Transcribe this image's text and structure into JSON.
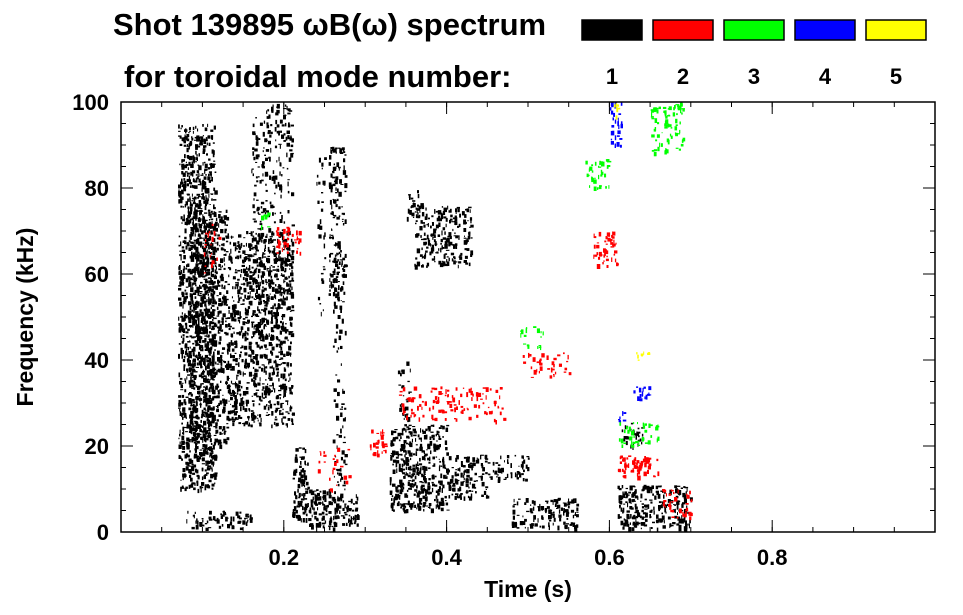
{
  "chart_data": {
    "type": "heatmap",
    "title_line1": "Shot 139895 ωB(ω) spectrum",
    "title_line2": "for toroidal mode number:",
    "xlabel": "Time (s)",
    "ylabel": "Frequency (kHz)",
    "xlim": [
      0.0,
      1.0
    ],
    "ylim": [
      0,
      100
    ],
    "x_ticks": [
      0.2,
      0.4,
      0.6,
      0.8
    ],
    "x_tick_labels": [
      "0.2",
      "0.4",
      "0.6",
      "0.8"
    ],
    "y_ticks": [
      0,
      20,
      40,
      60,
      80,
      100
    ],
    "y_tick_labels": [
      "0",
      "20",
      "40",
      "60",
      "80",
      "100"
    ],
    "legend_position": "top-right",
    "legend": [
      {
        "label": "1",
        "color": "#000000"
      },
      {
        "label": "2",
        "color": "#ff0000"
      },
      {
        "label": "3",
        "color": "#00ff00"
      },
      {
        "label": "4",
        "color": "#0000ff"
      },
      {
        "label": "5",
        "color": "#ffff00"
      }
    ],
    "regions": [
      {
        "mode": 1,
        "t": [
          0.07,
          0.115
        ],
        "f": [
          10,
          95
        ],
        "density": 0.75
      },
      {
        "mode": 1,
        "t": [
          0.085,
          0.13
        ],
        "f": [
          20,
          75
        ],
        "density": 0.65
      },
      {
        "mode": 1,
        "t": [
          0.13,
          0.21
        ],
        "f": [
          25,
          70
        ],
        "density": 0.6
      },
      {
        "mode": 1,
        "t": [
          0.16,
          0.21
        ],
        "f": [
          45,
          100
        ],
        "density": 0.3
      },
      {
        "mode": 1,
        "t": [
          0.08,
          0.16
        ],
        "f": [
          1,
          5
        ],
        "density": 0.55
      },
      {
        "mode": 1,
        "t": [
          0.21,
          0.23
        ],
        "f": [
          3,
          20
        ],
        "density": 0.7
      },
      {
        "mode": 1,
        "t": [
          0.23,
          0.265
        ],
        "f": [
          1,
          10
        ],
        "density": 0.75
      },
      {
        "mode": 1,
        "t": [
          0.265,
          0.29
        ],
        "f": [
          2,
          9
        ],
        "density": 0.75
      },
      {
        "mode": 1,
        "t": [
          0.255,
          0.275
        ],
        "f": [
          55,
          90
        ],
        "density": 0.5
      },
      {
        "mode": 1,
        "t": [
          0.26,
          0.275
        ],
        "f": [
          5,
          65
        ],
        "density": 0.25
      },
      {
        "mode": 1,
        "t": [
          0.24,
          0.25
        ],
        "f": [
          50,
          88
        ],
        "density": 0.2
      },
      {
        "mode": 1,
        "t": [
          0.33,
          0.4
        ],
        "f": [
          5,
          25
        ],
        "density": 0.7
      },
      {
        "mode": 1,
        "t": [
          0.4,
          0.45
        ],
        "f": [
          8,
          18
        ],
        "density": 0.6
      },
      {
        "mode": 1,
        "t": [
          0.45,
          0.5
        ],
        "f": [
          12,
          18
        ],
        "density": 0.45
      },
      {
        "mode": 1,
        "t": [
          0.34,
          0.355
        ],
        "f": [
          25,
          40
        ],
        "density": 0.35
      },
      {
        "mode": 1,
        "t": [
          0.36,
          0.43
        ],
        "f": [
          62,
          76
        ],
        "density": 0.55
      },
      {
        "mode": 1,
        "t": [
          0.35,
          0.37
        ],
        "f": [
          73,
          80
        ],
        "density": 0.4
      },
      {
        "mode": 1,
        "t": [
          0.48,
          0.56
        ],
        "f": [
          1,
          8
        ],
        "density": 0.55
      },
      {
        "mode": 1,
        "t": [
          0.61,
          0.7
        ],
        "f": [
          1,
          11
        ],
        "density": 0.7
      },
      {
        "mode": 1,
        "t": [
          0.615,
          0.64
        ],
        "f": [
          20,
          26
        ],
        "density": 0.5
      },
      {
        "mode": 2,
        "t": [
          0.19,
          0.22
        ],
        "f": [
          65,
          71
        ],
        "density": 0.5
      },
      {
        "mode": 2,
        "t": [
          0.1,
          0.12
        ],
        "f": [
          60,
          72
        ],
        "density": 0.2
      },
      {
        "mode": 2,
        "t": [
          0.305,
          0.325
        ],
        "f": [
          18,
          24
        ],
        "density": 0.55
      },
      {
        "mode": 2,
        "t": [
          0.34,
          0.47
        ],
        "f": [
          26,
          34
        ],
        "density": 0.3
      },
      {
        "mode": 2,
        "t": [
          0.49,
          0.55
        ],
        "f": [
          36,
          42
        ],
        "density": 0.25
      },
      {
        "mode": 2,
        "t": [
          0.58,
          0.61
        ],
        "f": [
          62,
          70
        ],
        "density": 0.55
      },
      {
        "mode": 2,
        "t": [
          0.61,
          0.66
        ],
        "f": [
          13,
          18
        ],
        "density": 0.65
      },
      {
        "mode": 2,
        "t": [
          0.66,
          0.7
        ],
        "f": [
          3,
          10
        ],
        "density": 0.35
      },
      {
        "mode": 2,
        "t": [
          0.24,
          0.28
        ],
        "f": [
          10,
          20
        ],
        "density": 0.15
      },
      {
        "mode": 3,
        "t": [
          0.57,
          0.6
        ],
        "f": [
          80,
          87
        ],
        "density": 0.45
      },
      {
        "mode": 3,
        "t": [
          0.65,
          0.69
        ],
        "f": [
          88,
          100
        ],
        "density": 0.45
      },
      {
        "mode": 3,
        "t": [
          0.61,
          0.66
        ],
        "f": [
          20,
          26
        ],
        "density": 0.35
      },
      {
        "mode": 3,
        "t": [
          0.49,
          0.52
        ],
        "f": [
          43,
          48
        ],
        "density": 0.3
      },
      {
        "mode": 3,
        "t": [
          0.17,
          0.18
        ],
        "f": [
          70,
          75
        ],
        "density": 0.4
      },
      {
        "mode": 4,
        "t": [
          0.6,
          0.615
        ],
        "f": [
          90,
          100
        ],
        "density": 0.5
      },
      {
        "mode": 4,
        "t": [
          0.625,
          0.65
        ],
        "f": [
          31,
          34
        ],
        "density": 0.55
      },
      {
        "mode": 4,
        "t": [
          0.61,
          0.62
        ],
        "f": [
          26,
          29
        ],
        "density": 0.4
      },
      {
        "mode": 5,
        "t": [
          0.605,
          0.61
        ],
        "f": [
          96,
          100
        ],
        "density": 0.6
      },
      {
        "mode": 5,
        "t": [
          0.63,
          0.65
        ],
        "f": [
          40,
          42
        ],
        "density": 0.5
      }
    ]
  }
}
